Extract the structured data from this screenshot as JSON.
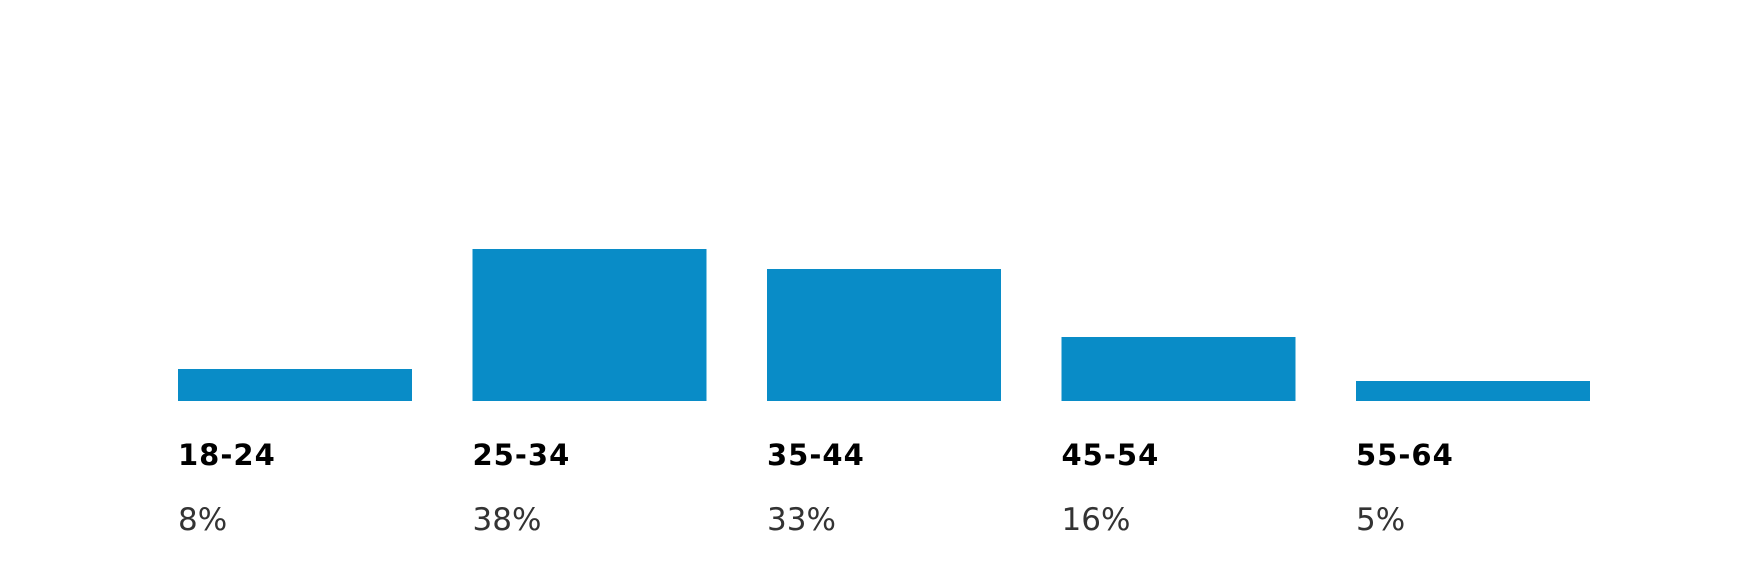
{
  "chart_data": {
    "type": "bar",
    "categories": [
      "18-24",
      "25-34",
      "35-44",
      "45-54",
      "55-64"
    ],
    "values": [
      8,
      38,
      33,
      16,
      5
    ],
    "value_labels": [
      "8%",
      "38%",
      "33%",
      "16%",
      "5%"
    ],
    "color": "#098cc7"
  }
}
